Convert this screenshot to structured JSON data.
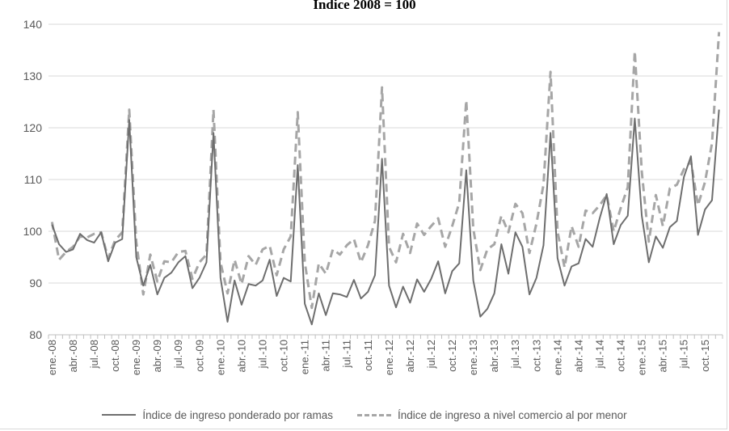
{
  "chart_data": {
    "type": "line",
    "title": "Índice 2008 = 100",
    "xlabel": "",
    "ylabel": "",
    "ylim": [
      80,
      140
    ],
    "yticks": [
      80,
      90,
      100,
      110,
      120,
      130,
      140
    ],
    "grid": true,
    "legend_position": "bottom",
    "x": [
      "ene.-08",
      "feb.-08",
      "mar.-08",
      "abr.-08",
      "may.-08",
      "jun.-08",
      "jul.-08",
      "ago.-08",
      "sep.-08",
      "oct.-08",
      "nov.-08",
      "dic.-08",
      "ene.-09",
      "feb.-09",
      "mar.-09",
      "abr.-09",
      "may.-09",
      "jun.-09",
      "jul.-09",
      "ago.-09",
      "sep.-09",
      "oct.-09",
      "nov.-09",
      "dic.-09",
      "ene.-10",
      "feb.-10",
      "mar.-10",
      "abr.-10",
      "may.-10",
      "jun.-10",
      "jul.-10",
      "ago.-10",
      "sep.-10",
      "oct.-10",
      "nov.-10",
      "dic.-10",
      "ene.-11",
      "feb.-11",
      "mar.-11",
      "abr.-11",
      "may.-11",
      "jun.-11",
      "jul.-11",
      "ago.-11",
      "sep.-11",
      "oct.-11",
      "nov.-11",
      "dic.-11",
      "ene.-12",
      "feb.-12",
      "mar.-12",
      "abr.-12",
      "may.-12",
      "jun.-12",
      "jul.-12",
      "ago.-12",
      "sep.-12",
      "oct.-12",
      "nov.-12",
      "dic.-12",
      "ene.-13",
      "feb.-13",
      "mar.-13",
      "abr.-13",
      "may.-13",
      "jun.-13",
      "jul.-13",
      "ago.-13",
      "sep.-13",
      "oct.-13",
      "nov.-13",
      "dic.-13",
      "ene.-14",
      "feb.-14",
      "mar.-14",
      "abr.-14",
      "may.-14",
      "jun.-14",
      "jul.-14",
      "ago.-14",
      "sep.-14",
      "oct.-14",
      "nov.-14",
      "dic.-14",
      "ene.-15",
      "feb.-15",
      "mar.-15",
      "abr.-15",
      "may.-15",
      "jun.-15",
      "jul.-15",
      "ago.-15",
      "sep.-15",
      "oct.-15",
      "nov.-15",
      "dic.-15"
    ],
    "x_tick_labels": [
      "ene.-08",
      "abr.-08",
      "jul.-08",
      "oct.-08",
      "ene.-09",
      "abr.-09",
      "jul.-09",
      "oct.-09",
      "ene.-10",
      "abr.-10",
      "jul.-10",
      "oct.-10",
      "ene.-11",
      "abr.-11",
      "jul.-11",
      "oct.-11",
      "ene.-12",
      "abr.-12",
      "jul.-12",
      "oct.-12",
      "ene.-13",
      "abr.-13",
      "jul.-13",
      "oct.-13",
      "ene.-14",
      "abr.-14",
      "jul.-14",
      "oct.-14",
      "ene.-15",
      "abr.-15",
      "jul.-15",
      "oct.-15"
    ],
    "series": [
      {
        "name": "Índice de ingreso ponderado por ramas",
        "color": "#6e6e6e",
        "dash": "solid",
        "values": [
          101.3,
          97.5,
          96.0,
          96.5,
          99.5,
          98.3,
          97.8,
          99.8,
          94.2,
          97.8,
          98.5,
          121.5,
          95.0,
          89.5,
          93.5,
          87.8,
          91.0,
          92.0,
          94.0,
          95.2,
          89.0,
          91.0,
          94.0,
          119.0,
          91.0,
          82.5,
          90.5,
          85.8,
          89.8,
          89.5,
          90.5,
          94.5,
          87.5,
          91.0,
          90.3,
          112.8,
          86.0,
          82.0,
          88.0,
          83.8,
          88.0,
          87.8,
          87.3,
          90.6,
          87.0,
          88.3,
          91.5,
          114.0,
          89.5,
          85.3,
          89.3,
          86.2,
          90.7,
          88.3,
          90.8,
          94.2,
          88.0,
          92.3,
          93.8,
          111.8,
          90.5,
          83.5,
          85.0,
          88.0,
          97.5,
          91.8,
          99.8,
          97.0,
          87.8,
          91.0,
          97.3,
          119.0,
          94.8,
          89.5,
          93.2,
          93.8,
          98.5,
          97.0,
          102.5,
          107.2,
          97.5,
          101.2,
          103.0,
          121.8,
          103.0,
          94.0,
          99.0,
          96.8,
          100.8,
          102.0,
          110.5,
          114.5,
          99.3,
          104.2,
          106.0,
          123.5
        ]
      },
      {
        "name": "Índice de ingreso a nivel comercio al por menor",
        "color": "#a6a6a6",
        "dash": "dashed",
        "values": [
          101.8,
          94.5,
          96.0,
          97.0,
          99.0,
          98.8,
          99.5,
          99.8,
          94.8,
          98.3,
          99.8,
          123.5,
          98.0,
          87.8,
          95.5,
          90.3,
          94.2,
          94.0,
          96.0,
          96.2,
          90.8,
          94.0,
          95.5,
          123.5,
          94.0,
          88.0,
          94.5,
          89.8,
          95.2,
          93.5,
          96.5,
          97.2,
          91.5,
          96.5,
          99.0,
          123.0,
          94.0,
          85.2,
          93.8,
          91.8,
          96.5,
          95.5,
          97.3,
          98.5,
          94.0,
          97.3,
          102.0,
          127.8,
          97.0,
          94.0,
          99.5,
          95.8,
          101.5,
          99.3,
          101.0,
          102.5,
          97.0,
          101.0,
          105.5,
          125.3,
          100.5,
          92.5,
          96.5,
          97.5,
          103.0,
          99.8,
          105.3,
          103.5,
          95.8,
          101.5,
          109.0,
          130.8,
          100.0,
          93.0,
          101.0,
          97.0,
          104.0,
          103.5,
          105.0,
          107.0,
          100.0,
          104.5,
          108.5,
          134.8,
          111.5,
          98.0,
          107.0,
          101.0,
          108.3,
          109.0,
          112.0,
          113.5,
          105.0,
          109.5,
          117.0,
          138.5
        ]
      }
    ]
  }
}
